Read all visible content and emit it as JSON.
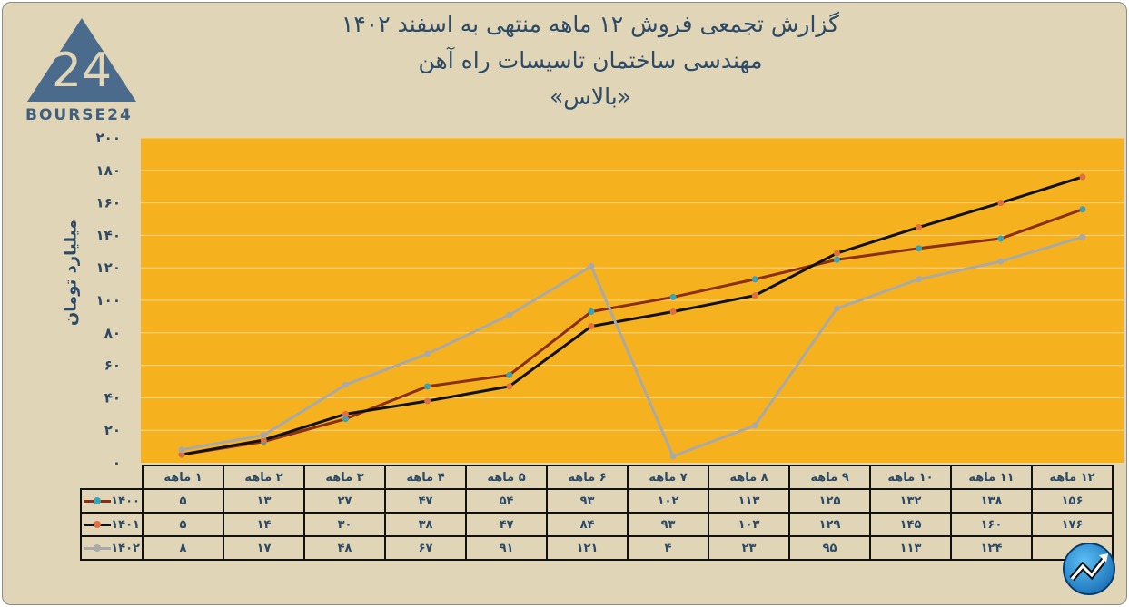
{
  "title": {
    "line1": "گزارش تجمعی فروش ۱۲ ماهه منتهی به اسفند ۱۴۰۲",
    "line2": "مهندسی ساختمان تاسیسات راه آهن",
    "line3": "«بالاس»"
  },
  "logo": {
    "text": "BOURSE24",
    "mark": "24"
  },
  "chart_data": {
    "type": "line",
    "ylabel": "میلیارد تومان",
    "ylim": [
      0,
      200
    ],
    "yticks": [
      "۰",
      "۲۰",
      "۴۰",
      "۶۰",
      "۸۰",
      "۱۰۰",
      "۱۲۰",
      "۱۴۰",
      "۱۶۰",
      "۱۸۰",
      "۲۰۰"
    ],
    "grid": true,
    "legend": "table-left",
    "plot_background": "#f5b21e",
    "categories": [
      "۱ ماهه",
      "۲ ماهه",
      "۳ ماهه",
      "۴ ماهه",
      "۵ ماهه",
      "۶ ماهه",
      "۷ ماهه",
      "۸ ماهه",
      "۹ ماهه",
      "۱۰ ماهه",
      "۱۱ ماهه",
      "۱۲ ماهه"
    ],
    "series": [
      {
        "name": "۱۴۰۰",
        "line_color": "#8b2e14",
        "marker_color": "#3aa3b5",
        "values": [
          5,
          13,
          27,
          47,
          54,
          93,
          102,
          113,
          125,
          132,
          138,
          156
        ],
        "labels": [
          "۵",
          "۱۳",
          "۲۷",
          "۴۷",
          "۵۴",
          "۹۳",
          "۱۰۲",
          "۱۱۳",
          "۱۲۵",
          "۱۳۲",
          "۱۳۸",
          "۱۵۶"
        ]
      },
      {
        "name": "۱۴۰۱",
        "line_color": "#111111",
        "marker_color": "#e0703f",
        "values": [
          5,
          14,
          30,
          38,
          47,
          84,
          93,
          103,
          129,
          145,
          160,
          176
        ],
        "labels": [
          "۵",
          "۱۴",
          "۳۰",
          "۳۸",
          "۴۷",
          "۸۴",
          "۹۳",
          "۱۰۳",
          "۱۲۹",
          "۱۴۵",
          "۱۶۰",
          "۱۷۶"
        ]
      },
      {
        "name": "۱۴۰۲",
        "line_color": "#a9a9a9",
        "marker_color": "#a9a9a9",
        "values": [
          8,
          17,
          48,
          67,
          91,
          121,
          4,
          23,
          95,
          113,
          124,
          139
        ],
        "labels": [
          "۸",
          "۱۷",
          "۴۸",
          "۶۷",
          "۹۱",
          "۱۲۱",
          "۴",
          "۲۳",
          "۹۵",
          "۱۱۳",
          "۱۲۴",
          ""
        ]
      }
    ]
  }
}
